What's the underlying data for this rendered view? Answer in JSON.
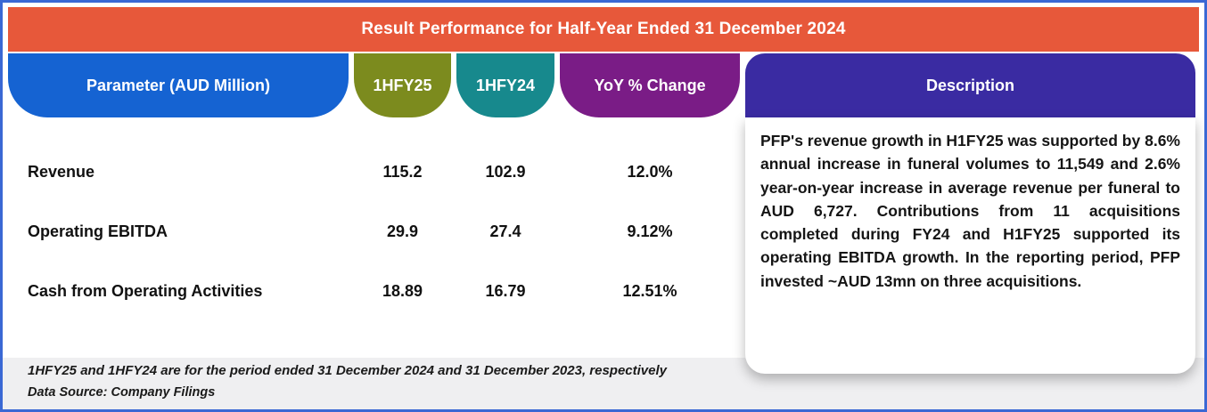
{
  "title": "Result Performance for Half-Year Ended 31 December 2024",
  "table": {
    "headers": [
      "Parameter (AUD Million)",
      "1HFY25",
      "1HFY24",
      "YoY % Change"
    ],
    "rows": [
      {
        "label": "Revenue",
        "values": [
          "115.2",
          "102.9",
          "12.0%"
        ]
      },
      {
        "label": "Operating EBITDA",
        "values": [
          "29.9",
          "27.4",
          "9.12%"
        ]
      },
      {
        "label": "Cash from Operating Activities",
        "values": [
          "18.89",
          "16.79",
          "12.51%"
        ]
      }
    ]
  },
  "description": {
    "header": "Description",
    "text": "PFP's revenue growth in H1FY25 was supported by 8.6% annual increase in funeral volumes to 11,549 and 2.6% year-on-year increase in average revenue per funeral to AUD 6,727. Contributions from 11 acquisitions completed during FY24 and H1FY25 supported its operating EBITDA growth. In the reporting period, PFP invested ~AUD 13mn on three acquisitions."
  },
  "footnotes": [
    "1HFY25 and 1HFY24 are for the period ended 31 December 2024 and 31 December 2023, respectively",
    "Data Source: Company Filings"
  ],
  "colors": {
    "title_bg": "#E7583A",
    "parameter_header_bg": "#1563D2",
    "fy25_header_bg": "#7C8B1E",
    "fy24_header_bg": "#17898D",
    "yoy_header_bg": "#7A1C86",
    "description_header_bg": "#3A2BA2",
    "frame_border": "#3A68D4",
    "footnote_band_bg": "#EFEFF1"
  },
  "chart_data": {
    "type": "table",
    "title": "Result Performance for Half-Year Ended 31 December 2024",
    "columns": [
      "Parameter (AUD Million)",
      "1HFY25",
      "1HFY24",
      "YoY % Change",
      "Description"
    ],
    "rows": [
      [
        "Revenue",
        115.2,
        102.9,
        "12.0%"
      ],
      [
        "Operating EBITDA",
        29.9,
        27.4,
        "9.12%"
      ],
      [
        "Cash from Operating Activities",
        18.89,
        16.79,
        "12.51%"
      ]
    ],
    "notes": [
      "1HFY25 and 1HFY24 are for the period ended 31 December 2024 and 31 December 2023, respectively",
      "Data Source: Company Filings"
    ]
  }
}
